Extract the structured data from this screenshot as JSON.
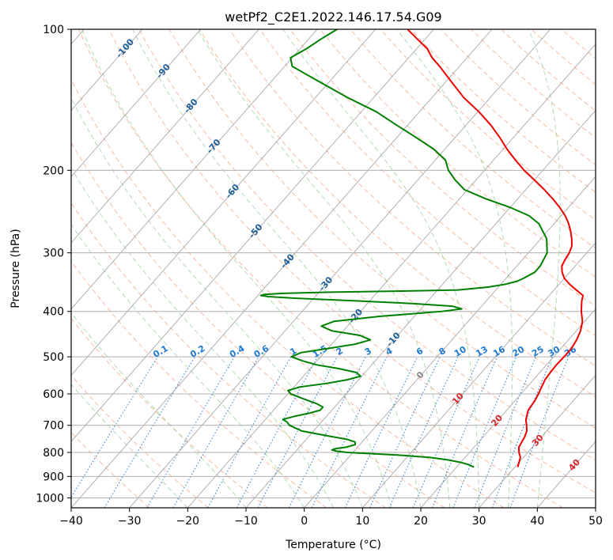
{
  "chart_data": {
    "type": "line",
    "title": "wetPf2_C2E1.2022.146.17.54.G09",
    "xlabel": "Temperature (°C)",
    "ylabel": "Pressure (hPa)",
    "xlim": [
      -40,
      50
    ],
    "ylim": [
      1050,
      100
    ],
    "y_scale": "log",
    "x_ticks": [
      "−40",
      "−30",
      "−20",
      "−10",
      "0",
      "10",
      "20",
      "30",
      "40",
      "50"
    ],
    "y_ticks": [
      "100",
      "200",
      "300",
      "400",
      "500",
      "600",
      "700",
      "800",
      "900",
      "1000"
    ],
    "grid": true,
    "colors": {
      "temperature": "#ee0000",
      "dewpoint": "#008000",
      "isotherm": "#999999",
      "dry_adiabat": "#f4a582",
      "moist_adiabat": "#8fcf8f",
      "mixing_ratio": "#1f78d1",
      "label_dark_blue": "#1f5f99",
      "label_red": "#d62728"
    },
    "isotherm_labels": [
      "-100",
      "-90",
      "-80",
      "-70",
      "-60",
      "-50",
      "-40",
      "-30",
      "-20",
      "-10",
      "0",
      "10",
      "20",
      "30",
      "40"
    ],
    "mixing_ratio_labels": [
      "0.1",
      "0.2",
      "0.4",
      "0.6",
      "1",
      "1.5",
      "2",
      "3",
      "4",
      "6",
      "8",
      "10",
      "13",
      "16",
      "20",
      "25",
      "30",
      "36"
    ],
    "series": [
      {
        "key": "temperature",
        "p": [
          860,
          840,
          820,
          800,
          780,
          760,
          740,
          720,
          700,
          680,
          650,
          620,
          600,
          580,
          560,
          540,
          520,
          500,
          480,
          460,
          440,
          420,
          400,
          380,
          370,
          360,
          350,
          340,
          330,
          320,
          310,
          300,
          290,
          280,
          270,
          260,
          250,
          240,
          230,
          220,
          210,
          200,
          190,
          180,
          170,
          160,
          150,
          140,
          130,
          120,
          115,
          110,
          105,
          100
        ],
        "t": [
          30.5,
          30.0,
          29.5,
          28.5,
          27.7,
          27.4,
          27.1,
          26.6,
          25.7,
          24.7,
          23.7,
          23.4,
          23.0,
          22.5,
          22.0,
          21.8,
          21.7,
          21.8,
          21.8,
          21.4,
          20.7,
          19.6,
          17.9,
          16.4,
          15.8,
          13.8,
          11.8,
          10.0,
          8.7,
          7.7,
          7.3,
          7.0,
          6.4,
          5.3,
          4.0,
          2.5,
          0.7,
          -1.5,
          -4.0,
          -6.8,
          -9.9,
          -13.2,
          -16.3,
          -19.4,
          -22.4,
          -25.8,
          -29.8,
          -34.5,
          -38.8,
          -43.4,
          -46.0,
          -48.2,
          -51.3,
          -54.5
        ]
      },
      {
        "key": "dewpoint",
        "p": [
          860,
          850,
          840,
          830,
          820,
          810,
          800,
          795,
          790,
          785,
          780,
          770,
          760,
          750,
          740,
          730,
          720,
          710,
          700,
          690,
          680,
          670,
          660,
          650,
          640,
          630,
          620,
          610,
          600,
          590,
          580,
          570,
          560,
          550,
          540,
          530,
          520,
          510,
          500,
          490,
          480,
          470,
          460,
          450,
          440,
          430,
          420,
          410,
          400,
          395,
          390,
          385,
          380,
          375,
          372,
          370,
          368,
          366,
          364,
          362,
          360,
          355,
          350,
          345,
          340,
          330,
          320,
          300,
          280,
          260,
          250,
          240,
          230,
          220,
          210,
          200,
          190,
          180,
          170,
          160,
          150,
          140,
          130,
          120,
          115,
          110,
          105,
          100
        ],
        "t": [
          23.0,
          21.8,
          20.0,
          17.5,
          14.0,
          8.0,
          -1.0,
          -3.0,
          -4.0,
          -3.5,
          -2.0,
          -0.8,
          -1.2,
          -3.0,
          -6.0,
          -9.0,
          -12.0,
          -13.5,
          -15.0,
          -15.8,
          -17.0,
          -15.5,
          -13.5,
          -12.0,
          -12.0,
          -13.5,
          -15.5,
          -17.5,
          -19.5,
          -20.5,
          -19.0,
          -15.0,
          -12.0,
          -10.2,
          -11.5,
          -15.0,
          -19.5,
          -22.5,
          -25.0,
          -24.0,
          -20.0,
          -16.0,
          -14.0,
          -16.5,
          -22.0,
          -24.5,
          -23.0,
          -16.0,
          -6.0,
          -3.0,
          -5.0,
          -12.0,
          -22.0,
          -33.0,
          -38.0,
          -39.5,
          -39.0,
          -36.0,
          -28.0,
          -16.0,
          -6.5,
          -1.8,
          0.8,
          2.3,
          3.0,
          4.0,
          4.0,
          3.2,
          1.0,
          -2.6,
          -5.5,
          -10.0,
          -15.5,
          -20.5,
          -23.5,
          -26.2,
          -28.3,
          -32.0,
          -36.8,
          -42.0,
          -47.4,
          -54.4,
          -61.3,
          -68.7,
          -70.3,
          -68.9,
          -67.9,
          -66.6
        ]
      }
    ]
  }
}
